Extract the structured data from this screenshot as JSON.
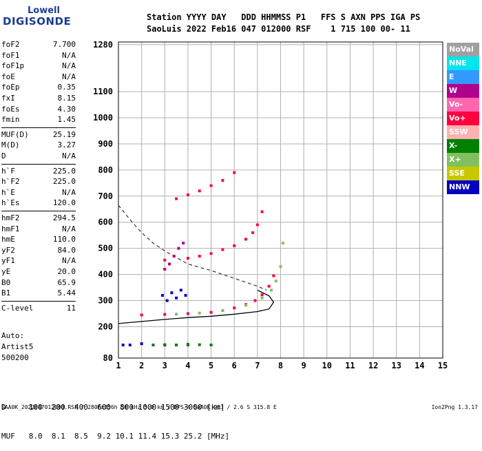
{
  "logo": {
    "line1": "Lowell",
    "line2": "DIGISONDE"
  },
  "header": {
    "line1": "Station YYYY DAY   DDD HHMMSS P1   FFS S AXN PPS IGA PS",
    "line2": "SaoLuis 2022 Feb16 047 012000 RSF    1 715 100 00- 11"
  },
  "params": [
    {
      "k": "foF2",
      "v": "7.700"
    },
    {
      "k": "foF1",
      "v": "N/A"
    },
    {
      "k": "foF1p",
      "v": "N/A"
    },
    {
      "k": "foE",
      "v": "N/A"
    },
    {
      "k": "foEp",
      "v": "0.35"
    },
    {
      "k": "fxI",
      "v": "8.15"
    },
    {
      "k": "foEs",
      "v": "4.30"
    },
    {
      "k": "fmin",
      "v": "1.45"
    },
    {
      "k": "MUF(D)",
      "v": "25.19"
    },
    {
      "k": "M(D)",
      "v": "3.27"
    },
    {
      "k": "D",
      "v": "N/A"
    },
    {
      "k": "h`F",
      "v": "225.0"
    },
    {
      "k": "h`F2",
      "v": "225.0"
    },
    {
      "k": "h`E",
      "v": "N/A"
    },
    {
      "k": "h`Es",
      "v": "120.0"
    },
    {
      "k": "hmF2",
      "v": "294.5"
    },
    {
      "k": "hmF1",
      "v": "N/A"
    },
    {
      "k": "hmE",
      "v": "110.0"
    },
    {
      "k": "yF2",
      "v": "84.0"
    },
    {
      "k": "yF1",
      "v": "N/A"
    },
    {
      "k": "yE",
      "v": "20.0"
    },
    {
      "k": "B0",
      "v": "65.9"
    },
    {
      "k": "B1",
      "v": "5.44"
    },
    {
      "k": "C-level",
      "v": "11"
    }
  ],
  "auto": {
    "label": "Auto:",
    "artist": "Artist5",
    "version": "500200"
  },
  "legend": [
    {
      "label": "NoVal",
      "color": "#a0a0a0"
    },
    {
      "label": "NNE",
      "color": "#00e5ee"
    },
    {
      "label": "E",
      "color": "#3399ff"
    },
    {
      "label": "W",
      "color": "#b0008c"
    },
    {
      "label": "Vo-",
      "color": "#ff66b0"
    },
    {
      "label": "Vo+",
      "color": "#ff0040"
    },
    {
      "label": "SSW",
      "color": "#ffb0b0"
    },
    {
      "label": "X-",
      "color": "#008000"
    },
    {
      "label": "X+",
      "color": "#80c060"
    },
    {
      "label": "SSE",
      "color": "#c8c800"
    },
    {
      "label": "NNW",
      "color": "#0000c0"
    }
  ],
  "muf_table": {
    "line1": "D     100  200  400  600  800 1000 1500 3000 [km]",
    "line2": "MUF   8.0  8.1  8.5  9.2 10.1 11.4 15.3 25.2 [MHz]"
  },
  "footer": "SAA0K_2022047012000.RSF / 280fx256h 50 kHz 5.0 km / DPS-4 SAA0K 903 / 2.6 S 315.8 E",
  "version_tag": "Ion2Png 1.3.17",
  "chart_data": {
    "type": "scatter",
    "xlim": [
      1,
      15
    ],
    "ylim": [
      80,
      1290
    ],
    "x_ticks": [
      1,
      2,
      3,
      4,
      5,
      6,
      7,
      8,
      9,
      10,
      11,
      12,
      13,
      14,
      15
    ],
    "y_ticks": [
      80,
      200,
      300,
      400,
      500,
      600,
      700,
      800,
      900,
      1000,
      1100,
      1280
    ],
    "grid": true,
    "series": [
      {
        "name": "Vo+",
        "color": "#ff0040",
        "x": [
          2.0,
          3.0,
          4.0,
          5.0,
          5.5,
          6.0,
          6.5,
          6.9,
          7.2,
          7.5,
          7.7
        ],
        "y": [
          245,
          247,
          250,
          255,
          262,
          272,
          285,
          300,
          322,
          355,
          395
        ]
      },
      {
        "name": "X+",
        "color": "#80c060",
        "x": [
          3.5,
          4.5,
          5.5,
          6.5,
          7.2,
          7.6,
          7.8,
          8.0,
          8.1
        ],
        "y": [
          248,
          252,
          262,
          282,
          310,
          340,
          375,
          430,
          520
        ]
      },
      {
        "name": "Vo+",
        "color": "#ff0040",
        "x": [
          3.0,
          4.0,
          4.5,
          5.0,
          5.5,
          6.0,
          6.5,
          6.8,
          7.0,
          7.2
        ],
        "y": [
          455,
          462,
          470,
          480,
          495,
          510,
          535,
          560,
          590,
          640
        ]
      },
      {
        "name": "Vo+",
        "color": "#ff0040",
        "x": [
          3.5,
          4.0,
          4.5,
          5.0,
          5.5,
          6.0
        ],
        "y": [
          690,
          705,
          720,
          740,
          760,
          790
        ]
      },
      {
        "name": "W",
        "color": "#b0008c",
        "x": [
          3.0,
          3.2,
          3.4,
          3.6,
          3.8
        ],
        "y": [
          420,
          440,
          470,
          500,
          520
        ]
      },
      {
        "name": "NNW",
        "color": "#0000c0",
        "x": [
          2.9,
          3.1,
          3.3,
          3.5,
          3.7,
          3.9
        ],
        "y": [
          320,
          300,
          330,
          310,
          340,
          320
        ]
      },
      {
        "name": "NNW",
        "color": "#0000c0",
        "x": [
          1.2,
          1.5,
          2.0,
          2.5,
          3.0,
          3.5,
          4.0
        ],
        "y": [
          130,
          130,
          135,
          130,
          130,
          130,
          132
        ]
      },
      {
        "name": "X-",
        "color": "#008000",
        "x": [
          2.5,
          3.0,
          3.5,
          4.0,
          4.5,
          5.0
        ],
        "y": [
          130,
          131,
          130,
          130,
          131,
          130
        ]
      }
    ],
    "profile_curve": {
      "x": [
        1.0,
        2.0,
        3.0,
        4.0,
        5.0,
        6.0,
        7.0,
        7.5,
        7.7,
        7.5,
        7.0
      ],
      "y": [
        212,
        220,
        228,
        235,
        240,
        248,
        258,
        268,
        294,
        318,
        340
      ]
    },
    "dashed_curve": {
      "x": [
        1.0,
        1.5,
        2.0,
        2.5,
        3.0,
        3.5,
        4.0,
        5.0,
        6.0,
        7.0,
        7.4
      ],
      "y": [
        665,
        610,
        560,
        520,
        490,
        465,
        440,
        415,
        385,
        355,
        340
      ]
    }
  }
}
